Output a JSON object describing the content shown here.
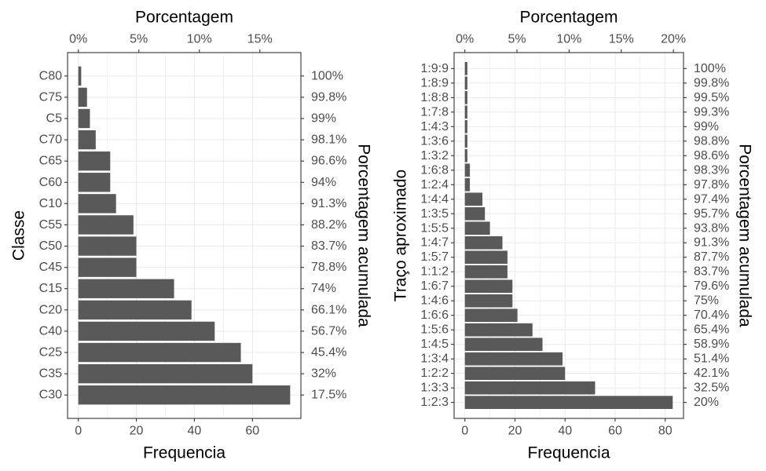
{
  "colors": {
    "bar": "#595959",
    "grid": "#ebebeb",
    "panel_border": "#333333",
    "tick_text": "#4d4d4d",
    "title_text": "#000000"
  },
  "chart_data": [
    {
      "type": "bar",
      "orientation": "horizontal",
      "ylabel": "Classe",
      "xlabel": "Frequencia",
      "top_axis_label": "Porcentagem",
      "right_axis_label": "Porcentagem acumulada",
      "categories": [
        "C30",
        "C35",
        "C25",
        "C40",
        "C20",
        "C15",
        "C45",
        "C50",
        "C55",
        "C10",
        "C60",
        "C65",
        "C70",
        "C5",
        "C75",
        "C80"
      ],
      "values": [
        73,
        60,
        56,
        47,
        39,
        33,
        20,
        20,
        19,
        13,
        11,
        11,
        6,
        4,
        3,
        1
      ],
      "cumulative_labels": [
        "17.5%",
        "32%",
        "45.4%",
        "56.7%",
        "66.1%",
        "74%",
        "78.8%",
        "83.7%",
        "88.2%",
        "91.3%",
        "94%",
        "96.6%",
        "98.1%",
        "99%",
        "99.8%",
        "100%"
      ],
      "x_ticks": [
        "0",
        "20",
        "40",
        "60"
      ],
      "x_tick_values": [
        0,
        20,
        40,
        60
      ],
      "xlim": [
        -3.7,
        76.7
      ],
      "top_ticks": [
        "0%",
        "5%",
        "10%",
        "15%"
      ],
      "top_tick_values": [
        0,
        5,
        10,
        15
      ],
      "top_lim_percent": [
        -0.89,
        18.39
      ],
      "grid": true
    },
    {
      "type": "bar",
      "orientation": "horizontal",
      "ylabel": "Traço aproximado",
      "xlabel": "Frequencia",
      "top_axis_label": "Porcentagem",
      "right_axis_label": "Porcentagem acumulada",
      "categories": [
        "1:2:3",
        "1:3:3",
        "1:2:2",
        "1:3:4",
        "1:4:5",
        "1:5:6",
        "1:6:6",
        "1:4:6",
        "1:6:7",
        "1:1:2",
        "1:5:7",
        "1:4:7",
        "1:5:5",
        "1:3:5",
        "1:4:4",
        "1:2:4",
        "1:6:8",
        "1:3:2",
        "1:3:6",
        "1:4:3",
        "1:7:8",
        "1:8:8",
        "1:8:9",
        "1:9:9"
      ],
      "values": [
        83,
        52,
        40,
        39,
        31,
        27,
        21,
        19,
        19,
        17,
        17,
        15,
        10,
        8,
        7,
        2,
        2,
        1,
        1,
        1,
        1,
        1,
        1,
        1
      ],
      "cumulative_labels": [
        "20%",
        "32.5%",
        "42.1%",
        "51.4%",
        "58.9%",
        "65.4%",
        "70.4%",
        "75%",
        "79.6%",
        "83.7%",
        "87.7%",
        "91.3%",
        "93.8%",
        "95.7%",
        "97.4%",
        "97.8%",
        "98.3%",
        "98.6%",
        "98.8%",
        "99%",
        "99.3%",
        "99.5%",
        "99.8%",
        "100%"
      ],
      "x_ticks": [
        "0",
        "20",
        "40",
        "60",
        "80"
      ],
      "x_tick_values": [
        0,
        20,
        40,
        60,
        80
      ],
      "xlim": [
        -4.3,
        87.3
      ],
      "top_ticks": [
        "0%",
        "5%",
        "10%",
        "15%",
        "20%"
      ],
      "top_tick_values": [
        0,
        5,
        10,
        15,
        20
      ],
      "top_lim_percent": [
        -1.03,
        20.97
      ],
      "grid": true
    }
  ]
}
